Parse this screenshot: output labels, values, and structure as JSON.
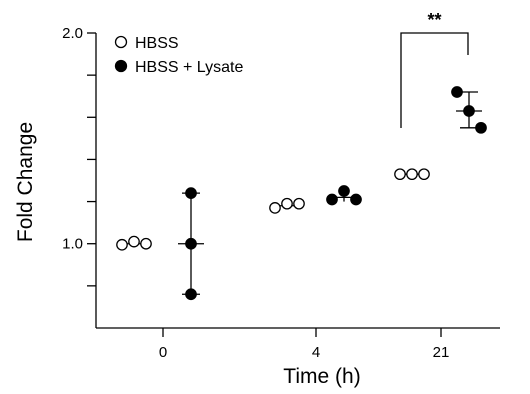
{
  "chart_data": {
    "type": "scatter",
    "xlabel": "Time (h)",
    "ylabel": "Fold Change",
    "categories": [
      "0",
      "4",
      "21"
    ],
    "ylim": [
      0.6,
      2.0
    ],
    "y_tick_labels": [
      "1.0",
      "2.0"
    ],
    "y_ticks": [
      0.8,
      1.0,
      1.2,
      1.4,
      1.6,
      1.8,
      2.0
    ],
    "legend": {
      "position": "top-left"
    },
    "grid": false,
    "series": [
      {
        "name": "HBSS",
        "marker": "open-circle",
        "points": [
          {
            "category": "0",
            "values": [
              0.995,
              1.01,
              1.0
            ],
            "mean": 1.0,
            "err_low": 0.995,
            "err_high": 1.01
          },
          {
            "category": "4",
            "values": [
              1.17,
              1.19,
              1.19
            ],
            "mean": 1.18,
            "err_low": 1.17,
            "err_high": 1.2
          },
          {
            "category": "21",
            "values": [
              1.33,
              1.33,
              1.33
            ],
            "mean": 1.33,
            "err_low": 1.32,
            "err_high": 1.34
          }
        ]
      },
      {
        "name": "HBSS + Lysate",
        "marker": "filled-circle",
        "points": [
          {
            "category": "0",
            "values": [
              1.24,
              1.0,
              0.76
            ],
            "mean": 1.0,
            "err_low": 0.76,
            "err_high": 1.24
          },
          {
            "category": "4",
            "values": [
              1.21,
              1.25,
              1.21
            ],
            "mean": 1.22,
            "err_low": 1.2,
            "err_high": 1.24
          },
          {
            "category": "21",
            "values": [
              1.72,
              1.63,
              1.55
            ],
            "mean": 1.63,
            "err_low": 1.55,
            "err_high": 1.72
          }
        ]
      }
    ],
    "annotations": [
      {
        "text": "**",
        "between": [
          "HBSS",
          "HBSS + Lysate"
        ],
        "category": "21"
      }
    ]
  }
}
